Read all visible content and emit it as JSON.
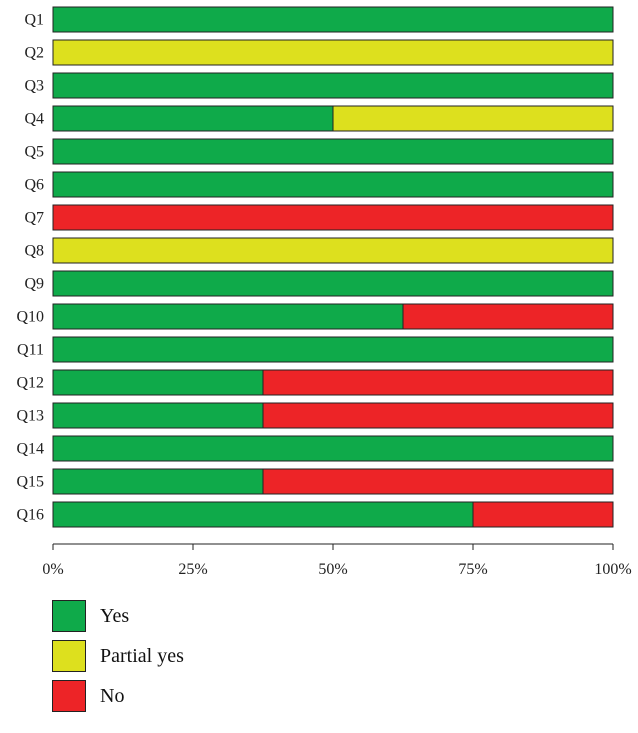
{
  "chart_data": {
    "type": "bar",
    "orientation": "horizontal",
    "stacked": true,
    "categories": [
      "Q1",
      "Q2",
      "Q3",
      "Q4",
      "Q5",
      "Q6",
      "Q7",
      "Q8",
      "Q9",
      "Q10",
      "Q11",
      "Q12",
      "Q13",
      "Q14",
      "Q15",
      "Q16"
    ],
    "series": [
      {
        "name": "Yes",
        "color": "#0faa4a",
        "values": [
          100,
          0,
          100,
          50,
          100,
          100,
          0,
          0,
          100,
          62.5,
          100,
          37.5,
          37.5,
          100,
          37.5,
          75
        ]
      },
      {
        "name": "Partial yes",
        "color": "#dde01e",
        "values": [
          0,
          100,
          0,
          50,
          0,
          0,
          0,
          100,
          0,
          0,
          0,
          0,
          0,
          0,
          0,
          0
        ]
      },
      {
        "name": "No",
        "color": "#ed2427",
        "values": [
          0,
          0,
          0,
          0,
          0,
          0,
          100,
          0,
          0,
          37.5,
          0,
          62.5,
          62.5,
          0,
          62.5,
          25
        ]
      }
    ],
    "xticks": [
      "0%",
      "25%",
      "50%",
      "75%",
      "100%"
    ],
    "xlim": [
      0,
      100
    ],
    "grid": false,
    "legend_position": "bottom-left"
  }
}
